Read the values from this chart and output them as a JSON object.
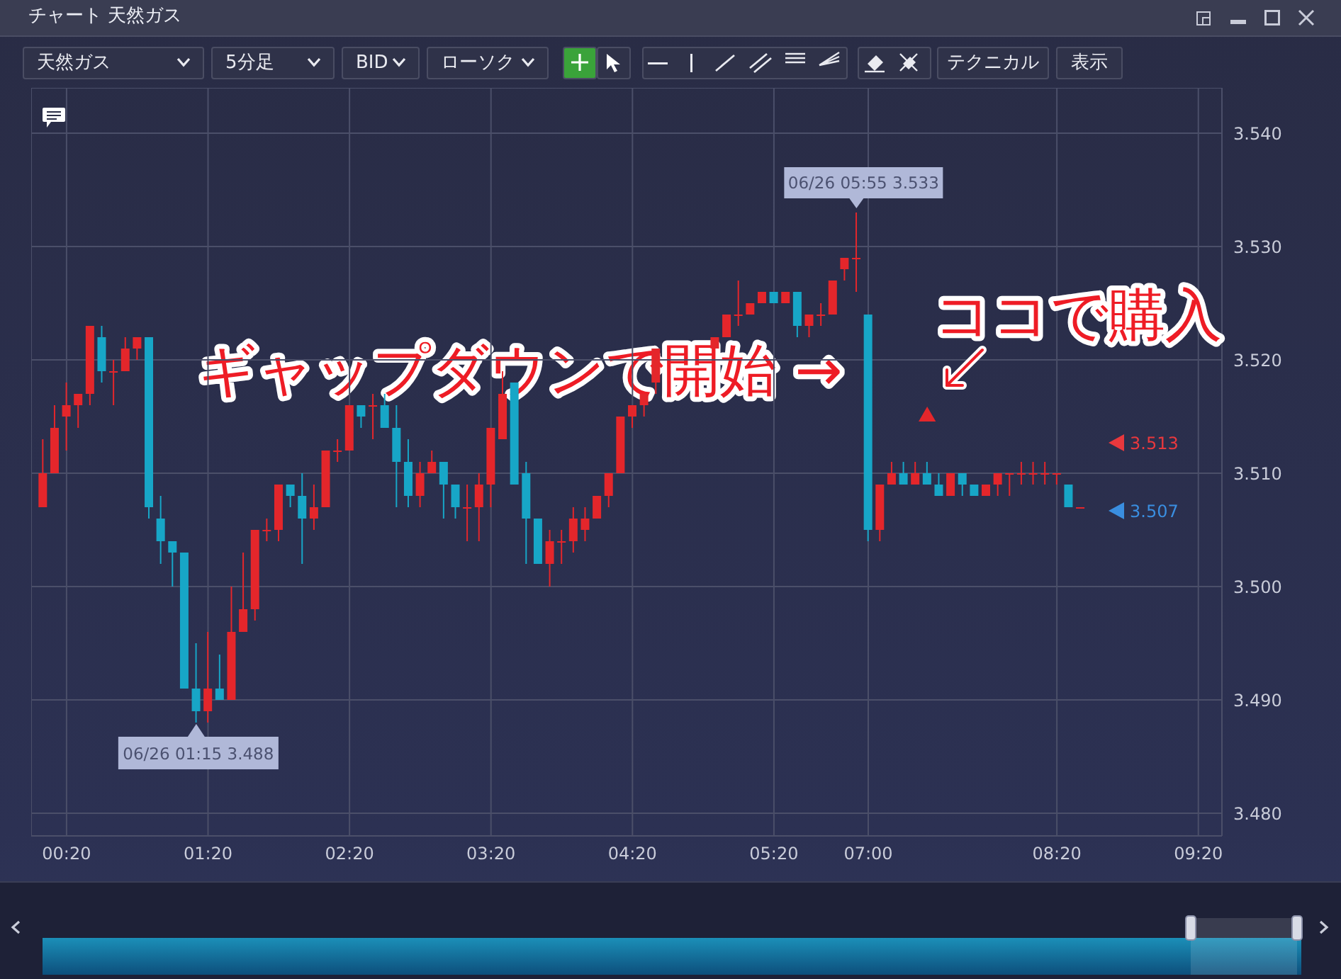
{
  "chart_data": {
    "type": "candlestick",
    "title": "チャート 天然ガス",
    "categories": [
      null,
      null,
      "00:20",
      null,
      null,
      null,
      null,
      null,
      null,
      null,
      null,
      null,
      null,
      null,
      "01:20",
      null,
      null,
      null,
      null,
      null,
      null,
      null,
      null,
      null,
      null,
      null,
      "02:20",
      null,
      null,
      null,
      null,
      null,
      null,
      null,
      null,
      null,
      null,
      null,
      "03:20",
      null,
      null,
      null,
      null,
      null,
      null,
      null,
      null,
      null,
      null,
      null,
      "04:20",
      null,
      null,
      null,
      null,
      null,
      null,
      null,
      null,
      null,
      null,
      null,
      "05:20",
      null,
      null,
      null,
      null,
      null,
      null,
      null,
      "07:00",
      null,
      null,
      null,
      null,
      null,
      null,
      null,
      null,
      null,
      null,
      null,
      null,
      null,
      null,
      null,
      "08:20",
      null,
      null,
      null,
      null,
      null,
      null,
      null,
      null,
      null,
      null,
      null,
      "09:20",
      null
    ],
    "ohlc": [
      [
        3.507,
        3.513,
        3.507,
        3.51
      ],
      [
        3.51,
        3.516,
        3.51,
        3.514
      ],
      [
        3.515,
        3.518,
        3.512,
        3.516
      ],
      [
        3.516,
        3.517,
        3.514,
        3.517
      ],
      [
        3.517,
        3.523,
        3.516,
        3.523
      ],
      [
        3.522,
        3.523,
        3.518,
        3.519
      ],
      [
        3.519,
        3.52,
        3.516,
        3.519
      ],
      [
        3.519,
        3.522,
        3.519,
        3.521
      ],
      [
        3.521,
        3.522,
        3.52,
        3.522
      ],
      [
        3.522,
        3.522,
        3.506,
        3.507
      ],
      [
        3.506,
        3.508,
        3.502,
        3.504
      ],
      [
        3.504,
        3.504,
        3.5,
        3.503
      ],
      [
        3.503,
        3.503,
        3.491,
        3.491
      ],
      [
        3.491,
        3.495,
        3.488,
        3.489
      ],
      [
        3.489,
        3.496,
        3.488,
        3.491
      ],
      [
        3.491,
        3.494,
        3.49,
        3.49
      ],
      [
        3.49,
        3.5,
        3.49,
        3.496
      ],
      [
        3.496,
        3.503,
        3.496,
        3.498
      ],
      [
        3.498,
        3.505,
        3.497,
        3.505
      ],
      [
        3.505,
        3.506,
        3.504,
        3.505
      ],
      [
        3.505,
        3.509,
        3.504,
        3.509
      ],
      [
        3.509,
        3.509,
        3.507,
        3.508
      ],
      [
        3.508,
        3.51,
        3.502,
        3.506
      ],
      [
        3.506,
        3.509,
        3.505,
        3.507
      ],
      [
        3.507,
        3.512,
        3.507,
        3.512
      ],
      [
        3.512,
        3.513,
        3.511,
        3.512
      ],
      [
        3.512,
        3.516,
        3.512,
        3.516
      ],
      [
        3.516,
        3.516,
        3.514,
        3.515
      ],
      [
        3.516,
        3.517,
        3.513,
        3.516
      ],
      [
        3.516,
        3.517,
        3.514,
        3.514
      ],
      [
        3.514,
        3.516,
        3.507,
        3.511
      ],
      [
        3.511,
        3.513,
        3.507,
        3.508
      ],
      [
        3.508,
        3.511,
        3.507,
        3.51
      ],
      [
        3.51,
        3.512,
        3.51,
        3.511
      ],
      [
        3.511,
        3.511,
        3.506,
        3.509
      ],
      [
        3.509,
        3.509,
        3.506,
        3.507
      ],
      [
        3.507,
        3.509,
        3.504,
        3.507
      ],
      [
        3.507,
        3.51,
        3.504,
        3.509
      ],
      [
        3.509,
        3.514,
        3.507,
        3.514
      ],
      [
        3.513,
        3.519,
        3.513,
        3.517
      ],
      [
        3.518,
        3.518,
        3.509,
        3.509
      ],
      [
        3.51,
        3.511,
        3.502,
        3.506
      ],
      [
        3.506,
        3.506,
        3.502,
        3.502
      ],
      [
        3.502,
        3.505,
        3.5,
        3.504
      ],
      [
        3.504,
        3.505,
        3.502,
        3.504
      ],
      [
        3.504,
        3.507,
        3.503,
        3.506
      ],
      [
        3.505,
        3.507,
        3.504,
        3.506
      ],
      [
        3.506,
        3.508,
        3.506,
        3.508
      ],
      [
        3.508,
        3.51,
        3.507,
        3.51
      ],
      [
        3.51,
        3.515,
        3.51,
        3.515
      ],
      [
        3.515,
        3.516,
        3.514,
        3.516
      ],
      [
        3.516,
        3.517,
        3.515,
        3.517
      ],
      [
        3.518,
        3.521,
        3.517,
        3.521
      ],
      null,
      null,
      null,
      null,
      [
        3.521,
        3.522,
        3.521,
        3.522
      ],
      [
        3.522,
        3.524,
        3.522,
        3.524
      ],
      [
        3.524,
        3.527,
        3.523,
        3.524
      ],
      [
        3.524,
        3.525,
        3.524,
        3.525
      ],
      [
        3.525,
        3.526,
        3.525,
        3.526
      ],
      [
        3.526,
        3.526,
        3.525,
        3.525
      ],
      [
        3.525,
        3.526,
        3.525,
        3.526
      ],
      [
        3.526,
        3.526,
        3.522,
        3.523
      ],
      [
        3.523,
        3.524,
        3.522,
        3.524
      ],
      [
        3.524,
        3.525,
        3.523,
        3.524
      ],
      [
        3.524,
        3.527,
        3.524,
        3.527
      ],
      [
        3.528,
        3.529,
        3.527,
        3.529
      ],
      [
        3.529,
        3.533,
        3.526,
        3.529
      ],
      [
        3.524,
        3.524,
        3.504,
        3.505
      ],
      [
        3.505,
        3.509,
        3.504,
        3.509
      ],
      [
        3.509,
        3.511,
        3.509,
        3.51
      ],
      [
        3.51,
        3.511,
        3.509,
        3.509
      ],
      [
        3.509,
        3.511,
        3.509,
        3.51
      ],
      [
        3.51,
        3.511,
        3.509,
        3.509
      ],
      [
        3.509,
        3.51,
        3.508,
        3.508
      ],
      [
        3.508,
        3.51,
        3.508,
        3.51
      ],
      [
        3.51,
        3.51,
        3.508,
        3.509
      ],
      [
        3.509,
        3.509,
        3.508,
        3.508
      ],
      [
        3.508,
        3.509,
        3.508,
        3.509
      ],
      [
        3.509,
        3.51,
        3.508,
        3.51
      ],
      [
        3.51,
        3.51,
        3.508,
        3.51
      ],
      [
        3.51,
        3.511,
        3.509,
        3.51
      ],
      [
        3.51,
        3.511,
        3.509,
        3.51
      ],
      [
        3.51,
        3.511,
        3.509,
        3.51
      ],
      [
        3.51,
        3.51,
        3.509,
        3.51
      ],
      [
        3.509,
        3.509,
        3.507,
        3.507
      ],
      [
        3.507,
        3.507,
        3.507,
        3.507
      ],
      null,
      null,
      null,
      null,
      null,
      null,
      null,
      null,
      null,
      null,
      null
    ],
    "colors": [
      "#e4262b",
      "#e4262b",
      "#e4262b",
      "#e4262b",
      "#e4262b",
      "#17a6c7",
      "#e4262b",
      "#e4262b",
      "#e4262b",
      "#17a6c7",
      "#17a6c7",
      "#17a6c7",
      "#17a6c7",
      "#17a6c7",
      "#e4262b",
      "#17a6c7",
      "#e4262b",
      "#e4262b",
      "#e4262b",
      "#e4262b",
      "#e4262b",
      "#17a6c7",
      "#17a6c7",
      "#e4262b",
      "#e4262b",
      "#e4262b",
      "#e4262b",
      "#17a6c7",
      "#e4262b",
      "#17a6c7",
      "#17a6c7",
      "#17a6c7",
      "#e4262b",
      "#e4262b",
      "#17a6c7",
      "#17a6c7",
      "#e4262b",
      "#e4262b",
      "#e4262b",
      "#e4262b",
      "#17a6c7",
      "#17a6c7",
      "#17a6c7",
      "#e4262b",
      "#e4262b",
      "#e4262b",
      "#e4262b",
      "#e4262b",
      "#e4262b",
      "#e4262b",
      "#e4262b",
      "#e4262b",
      "#e4262b",
      null,
      null,
      null,
      null,
      "#e4262b",
      "#e4262b",
      "#e4262b",
      "#e4262b",
      "#e4262b",
      "#17a6c7",
      "#e4262b",
      "#17a6c7",
      "#e4262b",
      "#e4262b",
      "#e4262b",
      "#e4262b",
      "#e4262b",
      "#17a6c7",
      "#e4262b",
      "#e4262b",
      "#17a6c7",
      "#e4262b",
      "#17a6c7",
      "#17a6c7",
      "#e4262b",
      "#17a6c7",
      "#17a6c7",
      "#e4262b",
      "#e4262b",
      "#e4262b",
      "#e4262b",
      "#e4262b",
      "#e4262b",
      "#e4262b",
      "#17a6c7",
      "#e4262b",
      null,
      null,
      null,
      null,
      null,
      null,
      null,
      null,
      null,
      null,
      null
    ],
    "series": [
      {
        "type": "scatter",
        "color": "#e4262b",
        "marker": "triangle",
        "values": [
          null,
          null,
          null,
          null,
          null,
          null,
          null,
          null,
          null,
          null,
          null,
          null,
          null,
          null,
          null,
          null,
          null,
          null,
          null,
          null,
          null,
          null,
          null,
          null,
          null,
          null,
          null,
          null,
          null,
          null,
          null,
          null,
          null,
          null,
          null,
          null,
          null,
          null,
          null,
          null,
          null,
          null,
          null,
          null,
          null,
          null,
          null,
          null,
          null,
          null,
          null,
          null,
          null,
          null,
          null,
          null,
          null,
          null,
          null,
          null,
          null,
          null,
          null,
          null,
          null,
          null,
          null,
          null,
          null,
          null,
          null,
          null,
          null,
          null,
          null,
          3.515,
          null,
          null,
          null,
          null,
          null,
          null,
          null,
          null,
          null,
          null,
          null,
          null,
          null,
          null,
          null,
          null,
          null,
          null,
          null,
          null,
          null,
          null,
          null,
          null
        ]
      }
    ],
    "ylim": [
      3.478,
      3.544
    ],
    "yticks": [
      {
        "value": 3.48,
        "label": "3.480"
      },
      {
        "value": 3.49,
        "label": "3.490"
      },
      {
        "value": 3.5,
        "label": "3.500"
      },
      {
        "value": 3.51,
        "label": "3.510"
      },
      {
        "value": 3.52,
        "label": "3.520"
      },
      {
        "value": 3.53,
        "label": "3.530"
      },
      {
        "value": 3.54,
        "label": "3.540"
      }
    ],
    "grid": true,
    "annotations": [
      "06/26 05:55 3.533",
      {
        "text": "06/26 01:15 3.488",
        "y": 3.488
      },
      "ギャップダウンで開始 →",
      "ココで購入",
      "3.513",
      "3.507",
      "天然ガス",
      "5分足",
      "BID",
      "ローソク",
      "テクニカル",
      "表示"
    ]
  }
}
